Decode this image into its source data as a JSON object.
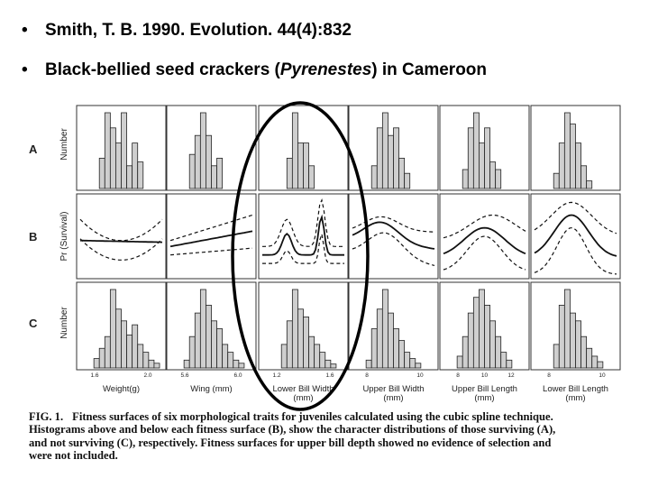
{
  "bullets": [
    {
      "text": "Smith, T. B. 1990. Evolution. 44(4):832",
      "italic": ""
    },
    {
      "pre": "Black-bellied seed crackers (",
      "italic": "Pyrenestes",
      "post": ") in Cameroon"
    }
  ],
  "figure": {
    "row_labels": [
      "A",
      "B",
      "C"
    ],
    "y_labels": [
      "Number",
      "Pr (Survival)",
      "Number"
    ],
    "x_labels": [
      [
        "Weight(g)"
      ],
      [
        "Wing (mm)"
      ],
      [
        "Lower Bill Width",
        "(mm)"
      ],
      [
        "Upper Bill Width",
        "(mm)"
      ],
      [
        "Upper Bill Length",
        "(mm)"
      ],
      [
        "Lower Bill Length",
        "(mm)"
      ]
    ],
    "tick_labels": [
      [
        "1.6",
        "2.0"
      ],
      [
        "5.6",
        "6.0"
      ],
      [
        "1.2",
        "1.6"
      ],
      [
        "8",
        "10"
      ],
      [
        "8",
        "10",
        "12"
      ],
      [
        "8",
        "10"
      ]
    ],
    "highlight_color": "#000000"
  },
  "caption": {
    "label": "FIG. 1.",
    "lines": [
      "Fitness surfaces of six morphological traits for juveniles calculated using the cubic spline technique.",
      "Histograms above and below each fitness surface (B), show the character distributions of those surviving (A),",
      "and not surviving (C), respectively. Fitness surfaces for upper bill depth showed no evidence of selection and",
      "were not included."
    ]
  }
}
